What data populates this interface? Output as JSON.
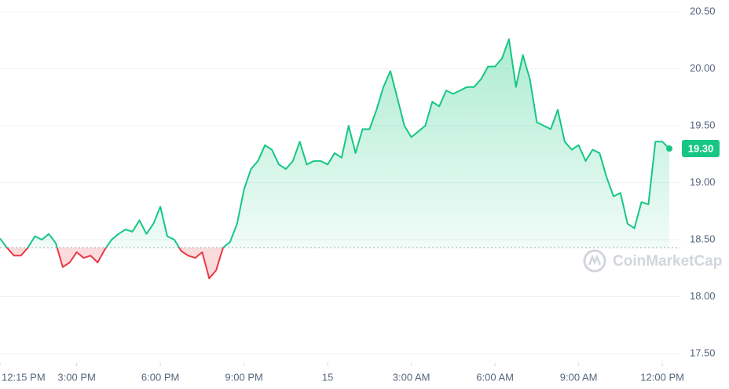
{
  "chart_data": {
    "type": "line",
    "x": [
      "14 12:15",
      "14 12:30",
      "14 12:45",
      "14 13:00",
      "14 13:15",
      "14 13:30",
      "14 13:45",
      "14 14:00",
      "14 14:15",
      "14 14:30",
      "14 14:45",
      "14 15:00",
      "14 15:15",
      "14 15:30",
      "14 15:45",
      "14 16:00",
      "14 16:15",
      "14 16:30",
      "14 16:45",
      "14 17:00",
      "14 17:15",
      "14 17:30",
      "14 17:45",
      "14 18:00",
      "14 18:15",
      "14 18:30",
      "14 18:45",
      "14 19:00",
      "14 19:15",
      "14 19:30",
      "14 19:45",
      "14 20:00",
      "14 20:15",
      "14 20:30",
      "14 20:45",
      "14 21:00",
      "14 21:15",
      "14 21:30",
      "14 21:45",
      "14 22:00",
      "14 22:15",
      "14 22:30",
      "14 22:45",
      "14 23:00",
      "14 23:15",
      "14 23:30",
      "14 23:45",
      "15 00:00",
      "15 00:15",
      "15 00:30",
      "15 00:45",
      "15 01:00",
      "15 01:15",
      "15 01:30",
      "15 01:45",
      "15 02:00",
      "15 02:15",
      "15 02:30",
      "15 02:45",
      "15 03:00",
      "15 03:15",
      "15 03:30",
      "15 03:45",
      "15 04:00",
      "15 04:15",
      "15 04:30",
      "15 04:45",
      "15 05:00",
      "15 05:15",
      "15 05:30",
      "15 05:45",
      "15 06:00",
      "15 06:15",
      "15 06:30",
      "15 06:45",
      "15 07:00",
      "15 07:15",
      "15 07:30",
      "15 07:45",
      "15 08:00",
      "15 08:15",
      "15 08:30",
      "15 08:45",
      "15 09:00",
      "15 09:15",
      "15 09:30",
      "15 09:45",
      "15 10:00",
      "15 10:15",
      "15 10:30",
      "15 10:45",
      "15 11:00",
      "15 11:15",
      "15 11:30",
      "15 11:45",
      "15 12:00",
      "15 12:15"
    ],
    "series": [
      {
        "values": [
          18.51,
          18.43,
          18.36,
          18.36,
          18.43,
          18.53,
          18.5,
          18.55,
          18.47,
          18.26,
          18.3,
          18.39,
          18.34,
          18.36,
          18.3,
          18.41,
          18.5,
          18.55,
          18.59,
          18.57,
          18.67,
          18.55,
          18.64,
          18.79,
          18.53,
          18.5,
          18.4,
          18.36,
          18.34,
          18.39,
          18.16,
          18.23,
          18.43,
          18.48,
          18.64,
          18.94,
          19.12,
          19.19,
          19.33,
          19.29,
          19.16,
          19.12,
          19.19,
          19.36,
          19.16,
          19.19,
          19.19,
          19.16,
          19.26,
          19.22,
          19.5,
          19.26,
          19.47,
          19.47,
          19.64,
          19.84,
          19.98,
          19.74,
          19.5,
          19.4,
          19.45,
          19.5,
          19.71,
          19.67,
          19.81,
          19.78,
          19.81,
          19.84,
          19.84,
          19.91,
          20.02,
          20.02,
          20.09,
          20.26,
          19.84,
          20.12,
          19.91,
          19.53,
          19.5,
          19.47,
          19.64,
          19.36,
          19.29,
          19.33,
          19.19,
          19.29,
          19.26,
          19.05,
          18.88,
          18.91,
          18.64,
          18.6,
          18.83,
          18.81,
          19.36,
          19.36,
          19.3
        ]
      }
    ],
    "baseline": 18.43,
    "color_up": "#16c784",
    "color_down": "#ea3943",
    "current_price": {
      "value": 19.3,
      "label": "19.30"
    },
    "xlim": [
      "14 12:15",
      "15 12:15"
    ],
    "xticks": [
      {
        "value": "14 12:15",
        "label": "12:15 PM"
      },
      {
        "value": "14 15:00",
        "label": "3:00 PM"
      },
      {
        "value": "14 18:00",
        "label": "6:00 PM"
      },
      {
        "value": "14 21:00",
        "label": "9:00 PM"
      },
      {
        "value": "15 00:00",
        "label": "15"
      },
      {
        "value": "15 03:00",
        "label": "3:00 AM"
      },
      {
        "value": "15 06:00",
        "label": "6:00 AM"
      },
      {
        "value": "15 09:00",
        "label": "9:00 AM"
      },
      {
        "value": "15 12:00",
        "label": "12:00 PM"
      }
    ],
    "ylim": [
      17.5,
      20.5
    ],
    "yticks": [
      {
        "value": 17.5,
        "label": "17.50"
      },
      {
        "value": 18,
        "label": "18.00"
      },
      {
        "value": 18.5,
        "label": "18.50"
      },
      {
        "value": 19,
        "label": "19.00"
      },
      {
        "value": 19.5,
        "label": "19.50"
      },
      {
        "value": 20,
        "label": "20.00"
      },
      {
        "value": 20.5,
        "label": "20.50"
      }
    ],
    "grid": true,
    "watermark": "CoinMarketCap"
  }
}
